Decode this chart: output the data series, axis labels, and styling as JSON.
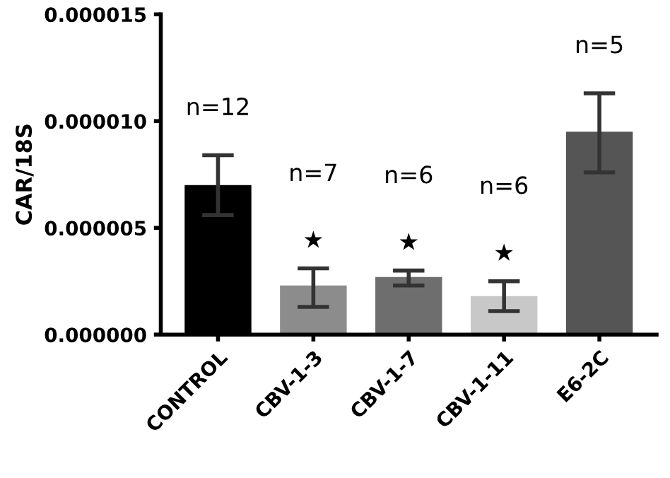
{
  "chart_data": {
    "type": "bar",
    "ylabel": "CAR/18S",
    "categories": [
      "CONTROL",
      "CBV-1-3",
      "CBV-1-7",
      "CBV-1-11",
      "E6-2C"
    ],
    "values": [
      7e-06,
      2.3e-06,
      2.7e-06,
      1.8e-06,
      9.5e-06
    ],
    "colors": [
      "#000000",
      "#8c8c8c",
      "#6e6e6e",
      "#c8c8c8",
      "#555555"
    ],
    "errors": [
      [
        5.6e-06,
        8.4e-06
      ],
      [
        1.3e-06,
        3.1e-06
      ],
      [
        2.3e-06,
        3e-06
      ],
      [
        1.1e-06,
        2.5e-06
      ],
      [
        7.6e-06,
        1.13e-05
      ]
    ],
    "ylim": [
      0,
      1.5e-05
    ],
    "yticks": [
      {
        "value": 0,
        "label": "0.000000"
      },
      {
        "value": 5e-06,
        "label": "0.000005"
      },
      {
        "value": 1e-05,
        "label": "0.000010"
      },
      {
        "value": 1.5e-05,
        "label": "0.000015"
      }
    ],
    "grid": false,
    "legend": false,
    "annotations": [
      "n=12",
      "n=7",
      "n=6",
      "n=6",
      "n=5",
      "★",
      "★",
      "★"
    ]
  }
}
